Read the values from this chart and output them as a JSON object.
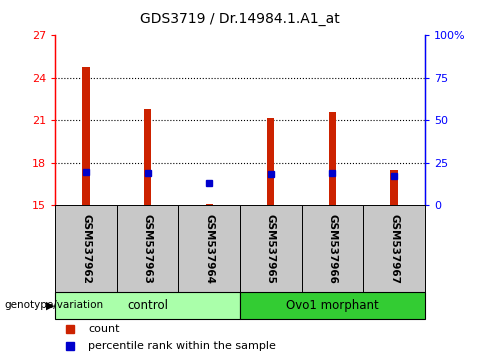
{
  "title": "GDS3719 / Dr.14984.1.A1_at",
  "samples": [
    "GSM537962",
    "GSM537963",
    "GSM537964",
    "GSM537965",
    "GSM537966",
    "GSM537967"
  ],
  "count_values": [
    24.8,
    21.8,
    15.1,
    21.2,
    21.6,
    17.5
  ],
  "count_base": 15.0,
  "percentile_values": [
    17.35,
    17.3,
    16.6,
    17.2,
    17.3,
    17.1
  ],
  "ylim_left": [
    15,
    27
  ],
  "ylim_right": [
    0,
    100
  ],
  "yticks_left": [
    15,
    18,
    21,
    24,
    27
  ],
  "yticks_right": [
    0,
    25,
    50,
    75,
    100
  ],
  "bar_color": "#CC2200",
  "point_color": "#0000CC",
  "bg_color": "#FFFFFF",
  "sample_bg": "#C8C8C8",
  "control_color": "#AAFFAA",
  "morphant_color": "#33CC33",
  "group_label": "genotype/variation",
  "groups": [
    {
      "label": "control",
      "start": 0,
      "end": 2,
      "color": "#AAFFAA"
    },
    {
      "label": "Ovo1 morphant",
      "start": 3,
      "end": 5,
      "color": "#33CC33"
    }
  ]
}
